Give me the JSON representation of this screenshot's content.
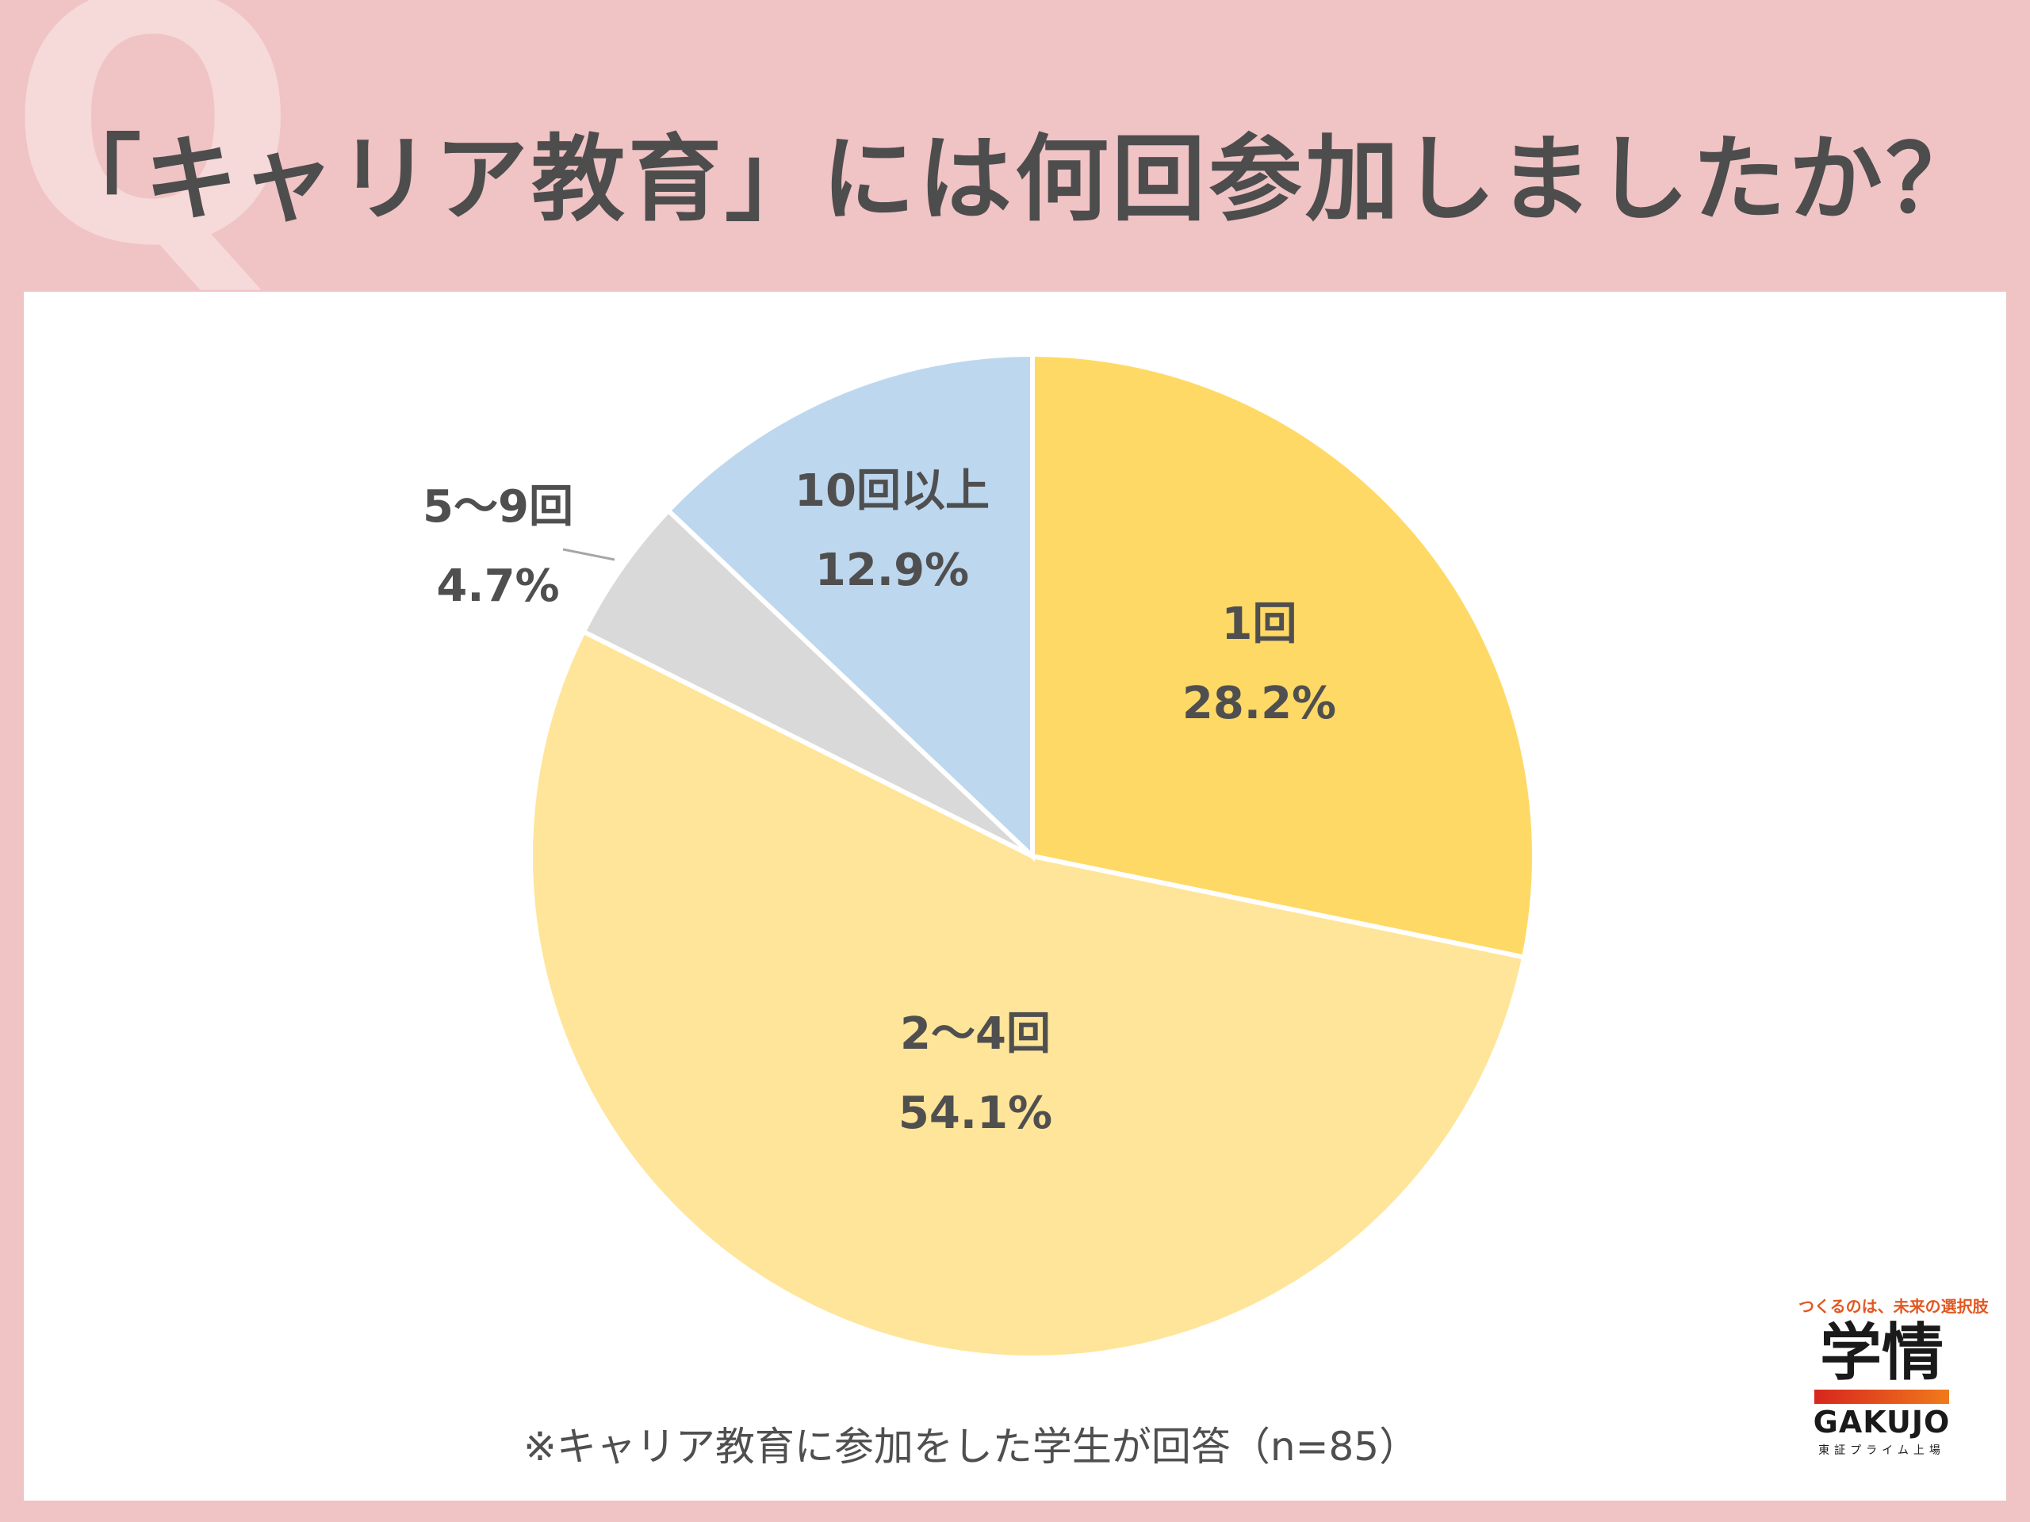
{
  "header": {
    "q_mark": "Q",
    "title": "「キャリア教育」には何回参加しましたか？"
  },
  "chart_data": {
    "type": "pie",
    "title": "「キャリア教育」には何回参加しましたか？",
    "slices": [
      {
        "label": "1回",
        "value": 28.2,
        "value_label": "28.2%",
        "color": "#ffd966"
      },
      {
        "label": "2～4回",
        "value": 54.1,
        "value_label": "54.1%",
        "color": "#ffe599"
      },
      {
        "label": "5～9回",
        "value": 4.7,
        "value_label": "4.7%",
        "color": "#d9d9d9"
      },
      {
        "label": "10回以上",
        "value": 12.9,
        "value_label": "12.9%",
        "color": "#bdd7ee"
      }
    ]
  },
  "footnote": "※キャリア教育に参加をした学生が回答（n=85）",
  "logo": {
    "tagline": "つくるのは、未来の選択肢",
    "name_jp": "学情",
    "name_en": "GAKUJO",
    "subline": "東証プライム上場"
  }
}
